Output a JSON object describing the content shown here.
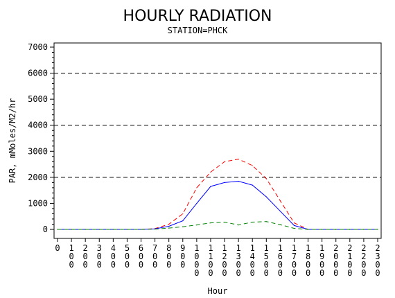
{
  "chart_data": {
    "type": "line",
    "title": "HOURLY RADIATION",
    "subtitle": "STATION=PHCK",
    "xlabel": "Hour",
    "ylabel": "PAR, mMoles/M2/hr",
    "x": [
      "0",
      "100",
      "200",
      "300",
      "400",
      "500",
      "600",
      "700",
      "800",
      "900",
      "1000",
      "1100",
      "1200",
      "1300",
      "1400",
      "1500",
      "1600",
      "1700",
      "1800",
      "1900",
      "2000",
      "2100",
      "2200",
      "2300"
    ],
    "ylim": [
      0,
      7000
    ],
    "yticks": [
      "0",
      "1000",
      "2000",
      "3000",
      "4000",
      "5000",
      "6000",
      "7000"
    ],
    "reference_lines": [
      2000,
      4000,
      6000
    ],
    "grid": false,
    "series": [
      {
        "color": "#ff0000",
        "dash": "dashed",
        "values": [
          0,
          0,
          0,
          0,
          0,
          0,
          0,
          30,
          200,
          600,
          1600,
          2200,
          2600,
          2700,
          2450,
          1950,
          1100,
          250,
          0,
          0,
          0,
          0,
          0,
          0
        ]
      },
      {
        "color": "#0000ff",
        "dash": "solid",
        "values": [
          0,
          0,
          0,
          0,
          0,
          0,
          0,
          20,
          120,
          330,
          1000,
          1650,
          1800,
          1850,
          1700,
          1250,
          700,
          150,
          0,
          0,
          0,
          0,
          0,
          0
        ]
      },
      {
        "color": "#008000",
        "dash": "dashed",
        "values": [
          0,
          0,
          0,
          0,
          0,
          0,
          0,
          10,
          50,
          100,
          170,
          250,
          280,
          170,
          280,
          300,
          180,
          40,
          0,
          0,
          0,
          0,
          0,
          0
        ]
      }
    ]
  }
}
